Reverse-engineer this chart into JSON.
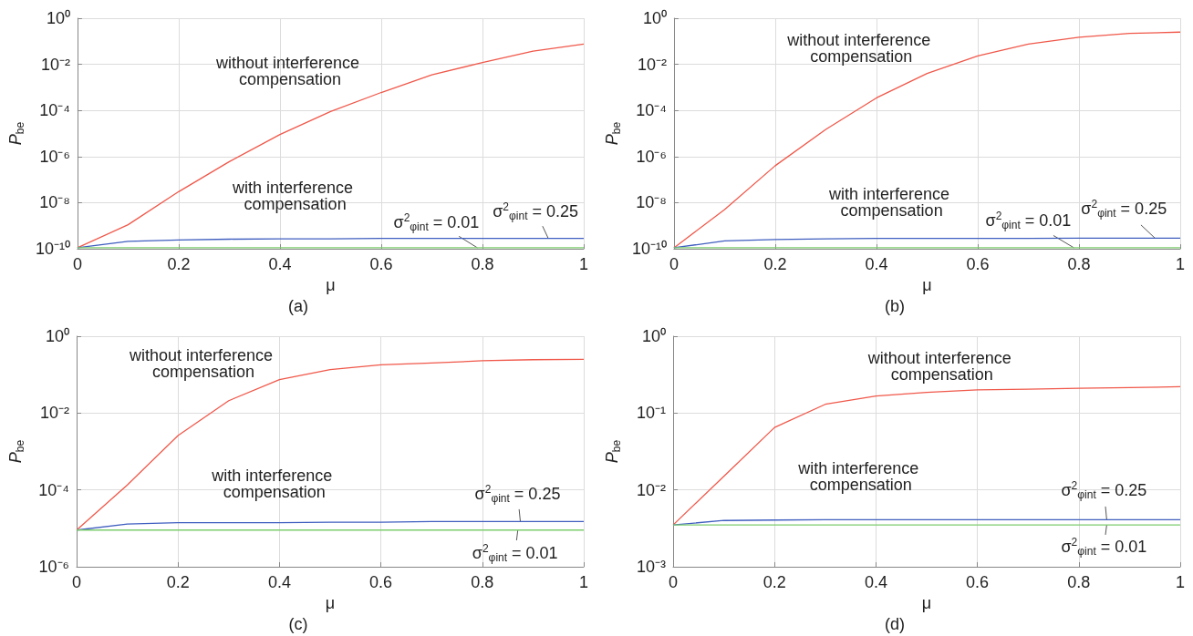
{
  "chart_data": [
    {
      "type": "line",
      "xlabel": "μ",
      "ylabel": "P$_{be}$",
      "log": true,
      "grid": true,
      "marker": "none",
      "line_style": "solid",
      "x": [
        0,
        0.1,
        0.2,
        0.3,
        0.4,
        0.5,
        0.6,
        0.7,
        0.8,
        0.9,
        1
      ],
      "xlim": [
        0,
        1
      ],
      "xticks": [
        0,
        0.2,
        0.4,
        0.6,
        0.8,
        1
      ],
      "ylim": [
        1e-10,
        1
      ],
      "yticks": [
        {
          "value": 1e-10,
          "label": "10⁻¹⁰"
        },
        {
          "value": 1e-08,
          "label": "10⁻⁸"
        },
        {
          "value": 1e-06,
          "label": "10⁻⁶"
        },
        {
          "value": 0.0001,
          "label": "10⁻⁴"
        },
        {
          "value": 0.01,
          "label": "10⁻²"
        },
        {
          "value": 1,
          "label": "10⁰"
        }
      ],
      "series": [
        {
          "color": "#f0584a",
          "values": [
            1.1e-10,
            1.1e-09,
            3e-08,
            6e-07,
            9e-06,
            9e-05,
            0.0006,
            0.0035,
            0.012,
            0.037,
            0.075
          ]
        },
        {
          "color": "#3f5ebf",
          "values": [
            1.1e-10,
            2.1e-10,
            2.4e-10,
            2.6e-10,
            2.7e-10,
            2.7e-10,
            2.8e-10,
            2.8e-10,
            2.8e-10,
            2.8e-10,
            2.8e-10
          ]
        },
        {
          "color": "#7ccd6e",
          "values": [
            1.1e-10,
            1.1e-10,
            1.1e-10,
            1.1e-10,
            1.1e-10,
            1.1e-10,
            1.1e-10,
            1.1e-10,
            1.1e-10,
            1.1e-10,
            1.1e-10
          ]
        }
      ],
      "annotations": [
        "without interference compensation",
        "with interference compensation",
        {
          "text": "σ$^{2}$$_{φint}$ = 0.01",
          "x": 0.79,
          "y": 1.1e-10
        },
        {
          "text": "σ$^{2}$$_{φint}$ = 0.25",
          "x": 0.93,
          "y": 2.8e-10
        },
        "(a)"
      ]
    },
    {
      "type": "line",
      "xlabel": "μ",
      "ylabel": "P$_{be}$",
      "log": true,
      "grid": true,
      "marker": "none",
      "line_style": "solid",
      "x": [
        0,
        0.1,
        0.2,
        0.3,
        0.4,
        0.5,
        0.6,
        0.7,
        0.8,
        0.9,
        1
      ],
      "xlim": [
        0,
        1
      ],
      "xticks": [
        0,
        0.2,
        0.4,
        0.6,
        0.8,
        1
      ],
      "ylim": [
        1e-10,
        1
      ],
      "yticks": [
        {
          "value": 1e-10,
          "label": "10⁻¹⁰"
        },
        {
          "value": 1e-08,
          "label": "10⁻⁸"
        },
        {
          "value": 1e-06,
          "label": "10⁻⁶"
        },
        {
          "value": 0.0001,
          "label": "10⁻⁴"
        },
        {
          "value": 0.01,
          "label": "10⁻²"
        },
        {
          "value": 1,
          "label": "10⁰"
        }
      ],
      "series": [
        {
          "color": "#f0584a",
          "values": [
            1.1e-10,
            5e-09,
            4e-07,
            1.5e-05,
            0.00035,
            0.004,
            0.023,
            0.075,
            0.15,
            0.22,
            0.25
          ]
        },
        {
          "color": "#3f5ebf",
          "values": [
            1.1e-10,
            2.2e-10,
            2.5e-10,
            2.7e-10,
            2.8e-10,
            2.8e-10,
            2.8e-10,
            2.8e-10,
            2.9e-10,
            2.9e-10,
            2.9e-10
          ]
        },
        {
          "color": "#7ccd6e",
          "values": [
            1.1e-10,
            1.1e-10,
            1.1e-10,
            1.1e-10,
            1.1e-10,
            1.1e-10,
            1.1e-10,
            1.1e-10,
            1.1e-10,
            1.1e-10,
            1.1e-10
          ]
        }
      ],
      "annotations": [
        "without interference compensation",
        "with interference compensation",
        {
          "text": "σ$^{2}$$_{φint}$ = 0.01",
          "x": 0.79,
          "y": 1.1e-10
        },
        {
          "text": "σ$^{2}$$_{φint}$ = 0.25",
          "x": 0.95,
          "y": 2.9e-10
        },
        "(b)"
      ]
    },
    {
      "type": "line",
      "xlabel": "μ",
      "ylabel": "P$_{be}$",
      "log": true,
      "grid": true,
      "marker": "none",
      "line_style": "solid",
      "x": [
        0,
        0.1,
        0.2,
        0.3,
        0.4,
        0.5,
        0.6,
        0.7,
        0.8,
        0.9,
        1
      ],
      "xlim": [
        0,
        1
      ],
      "xticks": [
        0,
        0.2,
        0.4,
        0.6,
        0.8,
        1
      ],
      "ylim": [
        1e-06,
        1
      ],
      "yticks": [
        {
          "value": 1e-06,
          "label": "10⁻⁶"
        },
        {
          "value": 0.0001,
          "label": "10⁻⁴"
        },
        {
          "value": 0.01,
          "label": "10⁻²"
        },
        {
          "value": 1,
          "label": "10⁰"
        }
      ],
      "series": [
        {
          "color": "#f0584a",
          "values": [
            9e-06,
            0.000135,
            0.0026,
            0.021,
            0.074,
            0.135,
            0.18,
            0.2,
            0.23,
            0.245,
            0.25
          ]
        },
        {
          "color": "#3f5ebf",
          "values": [
            9e-06,
            1.3e-05,
            1.4e-05,
            1.4e-05,
            1.4e-05,
            1.45e-05,
            1.45e-05,
            1.5e-05,
            1.5e-05,
            1.5e-05,
            1.5e-05
          ]
        },
        {
          "color": "#7ccd6e",
          "values": [
            9e-06,
            9e-06,
            9e-06,
            9e-06,
            9e-06,
            9e-06,
            9e-06,
            9e-06,
            9e-06,
            9e-06,
            9e-06
          ]
        }
      ],
      "annotations": [
        "without interference compensation",
        "with interference compensation",
        {
          "text": "σ$^{2}$$_{φint}$ = 0.25",
          "x": 0.875,
          "y": 1.5e-05
        },
        {
          "text": "σ$^{2}$$_{φint}$ = 0.01",
          "x": 0.87,
          "y": 9e-06
        },
        "(c)"
      ]
    },
    {
      "type": "line",
      "xlabel": "μ",
      "ylabel": "P$_{be}$",
      "log": true,
      "grid": true,
      "marker": "none",
      "line_style": "solid",
      "x": [
        0,
        0.1,
        0.2,
        0.3,
        0.4,
        0.5,
        0.6,
        0.7,
        0.8,
        0.9,
        1
      ],
      "xlim": [
        0,
        1
      ],
      "xticks": [
        0,
        0.2,
        0.4,
        0.6,
        0.8,
        1
      ],
      "ylim": [
        0.001,
        1
      ],
      "yticks": [
        {
          "value": 0.001,
          "label": "10⁻³"
        },
        {
          "value": 0.01,
          "label": "10⁻²"
        },
        {
          "value": 0.1,
          "label": "10⁻¹"
        },
        {
          "value": 1,
          "label": "10⁰"
        }
      ],
      "series": [
        {
          "color": "#f0584a",
          "values": [
            0.0035,
            0.015,
            0.065,
            0.13,
            0.167,
            0.186,
            0.2,
            0.205,
            0.21,
            0.215,
            0.22
          ]
        },
        {
          "color": "#3f5ebf",
          "values": [
            0.0035,
            0.004,
            0.00405,
            0.0041,
            0.0041,
            0.0041,
            0.0041,
            0.0041,
            0.0041,
            0.0041,
            0.0041
          ]
        },
        {
          "color": "#7ccd6e",
          "values": [
            0.0035,
            0.0035,
            0.0035,
            0.0035,
            0.0035,
            0.0035,
            0.0035,
            0.0035,
            0.0035,
            0.0035,
            0.0035
          ]
        }
      ],
      "annotations": [
        "without interference compensation",
        "with interference compensation",
        {
          "text": "σ$^{2}$$_{φint}$ = 0.25",
          "x": 0.855,
          "y": 0.0041
        },
        {
          "text": "σ$^{2}$$_{φint}$ = 0.01",
          "x": 0.855,
          "y": 0.0035
        },
        "(d)"
      ]
    }
  ]
}
